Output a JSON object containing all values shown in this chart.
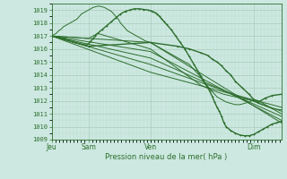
{
  "background_color": "#cce8e0",
  "grid_color_major": "#aaccbb",
  "grid_color_minor": "#bbddd0",
  "line_color": "#2d6e2d",
  "ylim": [
    1009,
    1019.5
  ],
  "yticks": [
    1009,
    1010,
    1011,
    1012,
    1013,
    1014,
    1015,
    1016,
    1017,
    1018,
    1019
  ],
  "xlabel": "Pression niveau de la mer( hPa )",
  "xtick_labels": [
    "Jeu",
    "Sam",
    "Ven",
    "Dim"
  ],
  "xtick_positions": [
    0.0,
    0.16,
    0.43,
    0.88
  ],
  "plot_xlim": [
    0.0,
    1.0
  ],
  "lines": [
    {
      "x": [
        0.0,
        0.01,
        0.02,
        0.03,
        0.04,
        0.05,
        0.06,
        0.07,
        0.08,
        0.09,
        0.1,
        0.11,
        0.12,
        0.13,
        0.14,
        0.15,
        0.16,
        0.17,
        0.18,
        0.19,
        0.2,
        0.21,
        0.22,
        0.23,
        0.24,
        0.25,
        0.26,
        0.27,
        0.28,
        0.29,
        0.3,
        0.31,
        0.32,
        0.33,
        0.34,
        0.35,
        0.36,
        0.37,
        0.38,
        0.39,
        0.4,
        0.41,
        0.42,
        0.43,
        0.44,
        0.45,
        0.46,
        0.47,
        0.48,
        0.49,
        0.5,
        0.51,
        0.52,
        0.53,
        0.54,
        0.55,
        0.56,
        0.57,
        0.58,
        0.59,
        0.6,
        0.61,
        0.62,
        0.63,
        0.64,
        0.65,
        0.66,
        0.67,
        0.68,
        0.69,
        0.7,
        0.71,
        0.72,
        0.73,
        0.74,
        0.75,
        0.76,
        0.77,
        0.78,
        0.79,
        0.8,
        0.81,
        0.82,
        0.83,
        0.84,
        0.85,
        0.86,
        0.87,
        0.88,
        0.89,
        0.9,
        0.91,
        0.92,
        0.93,
        0.94,
        0.95,
        0.96,
        0.97,
        0.98,
        0.99,
        1.0
      ],
      "y": [
        1017.0,
        1017.1,
        1017.2,
        1017.4,
        1017.5,
        1017.7,
        1017.8,
        1017.9,
        1018.0,
        1018.1,
        1018.2,
        1018.3,
        1018.5,
        1018.7,
        1018.8,
        1018.9,
        1019.0,
        1019.1,
        1019.2,
        1019.25,
        1019.3,
        1019.3,
        1019.25,
        1019.2,
        1019.1,
        1019.0,
        1018.9,
        1018.7,
        1018.5,
        1018.3,
        1018.0,
        1017.8,
        1017.6,
        1017.4,
        1017.3,
        1017.2,
        1017.1,
        1017.0,
        1016.9,
        1016.8,
        1016.7,
        1016.6,
        1016.55,
        1016.5,
        1016.4,
        1016.3,
        1016.2,
        1016.1,
        1016.0,
        1015.9,
        1015.8,
        1015.7,
        1015.6,
        1015.5,
        1015.4,
        1015.3,
        1015.2,
        1015.1,
        1015.0,
        1014.9,
        1014.8,
        1014.6,
        1014.4,
        1014.2,
        1014.0,
        1013.8,
        1013.5,
        1013.3,
        1013.1,
        1012.9,
        1012.7,
        1012.5,
        1012.3,
        1012.2,
        1012.1,
        1012.0,
        1011.9,
        1011.85,
        1011.8,
        1011.75,
        1011.7,
        1011.7,
        1011.7,
        1011.75,
        1011.8,
        1011.85,
        1011.9,
        1012.0,
        1012.1,
        1012.05,
        1012.0,
        1011.9,
        1011.8,
        1011.7,
        1011.6,
        1011.5,
        1011.4,
        1011.3,
        1011.2,
        1011.1,
        1011.0
      ]
    },
    {
      "x": [
        0.0,
        0.05,
        0.1,
        0.15,
        0.16,
        0.17,
        0.18,
        0.19,
        0.2,
        0.22,
        0.24,
        0.26,
        0.28,
        0.3,
        0.32,
        0.34,
        0.36,
        0.38,
        0.4,
        0.42,
        0.43,
        0.44,
        0.45,
        0.46,
        0.47,
        0.48,
        0.49,
        0.5,
        0.52,
        0.54,
        0.56,
        0.58,
        0.6,
        0.62,
        0.64,
        0.65,
        0.66,
        0.67,
        0.68,
        0.69,
        0.7,
        0.71,
        0.72,
        0.73,
        0.74,
        0.75,
        0.76,
        0.78,
        0.8,
        0.82,
        0.84,
        0.86,
        0.88,
        0.9,
        0.92,
        0.94,
        0.96,
        0.98,
        1.0
      ],
      "y": [
        1017.0,
        1016.8,
        1016.5,
        1016.3,
        1016.4,
        1016.6,
        1016.8,
        1017.0,
        1017.2,
        1017.5,
        1017.8,
        1018.1,
        1018.4,
        1018.7,
        1018.9,
        1019.0,
        1019.1,
        1019.1,
        1019.05,
        1019.0,
        1018.95,
        1018.9,
        1018.8,
        1018.7,
        1018.5,
        1018.3,
        1018.1,
        1017.9,
        1017.5,
        1017.0,
        1016.5,
        1016.0,
        1015.4,
        1014.8,
        1014.2,
        1013.9,
        1013.6,
        1013.3,
        1013.0,
        1012.7,
        1012.3,
        1011.9,
        1011.5,
        1011.2,
        1010.8,
        1010.3,
        1010.0,
        1009.7,
        1009.5,
        1009.35,
        1009.3,
        1009.3,
        1009.4,
        1009.6,
        1009.8,
        1010.0,
        1010.2,
        1010.3,
        1010.4
      ]
    },
    {
      "x": [
        0.0,
        0.43,
        1.0
      ],
      "y": [
        1017.0,
        1016.5,
        1010.3
      ]
    },
    {
      "x": [
        0.0,
        0.43,
        1.0
      ],
      "y": [
        1017.0,
        1015.8,
        1010.5
      ]
    },
    {
      "x": [
        0.0,
        0.43,
        1.0
      ],
      "y": [
        1017.0,
        1015.3,
        1010.8
      ]
    },
    {
      "x": [
        0.0,
        0.43,
        1.0
      ],
      "y": [
        1017.0,
        1014.8,
        1011.2
      ]
    },
    {
      "x": [
        0.0,
        0.43,
        1.0
      ],
      "y": [
        1017.0,
        1014.2,
        1011.5
      ]
    },
    {
      "x": [
        0.0,
        0.16,
        0.2,
        0.43,
        0.65,
        0.7,
        0.75,
        0.8,
        0.85,
        0.88,
        0.9,
        0.93,
        0.96,
        1.0
      ],
      "y": [
        1017.0,
        1016.8,
        1017.2,
        1016.0,
        1013.2,
        1012.8,
        1012.5,
        1012.3,
        1012.1,
        1012.0,
        1011.8,
        1011.6,
        1011.4,
        1011.3
      ]
    },
    {
      "x": [
        0.0,
        0.16,
        0.43,
        0.55,
        0.6,
        0.65,
        0.68,
        0.7,
        0.72,
        0.74,
        0.76,
        0.78,
        0.8,
        0.83,
        0.86,
        0.88,
        0.9,
        0.93,
        0.96,
        1.0
      ],
      "y": [
        1017.0,
        1016.2,
        1016.5,
        1016.2,
        1016.0,
        1015.7,
        1015.5,
        1015.2,
        1015.0,
        1014.7,
        1014.3,
        1014.0,
        1013.5,
        1013.0,
        1012.5,
        1012.1,
        1011.9,
        1012.2,
        1012.4,
        1012.5
      ]
    }
  ],
  "marker_lines": [
    1,
    8
  ],
  "lw_thick": 1.0,
  "lw_thin": 0.7
}
